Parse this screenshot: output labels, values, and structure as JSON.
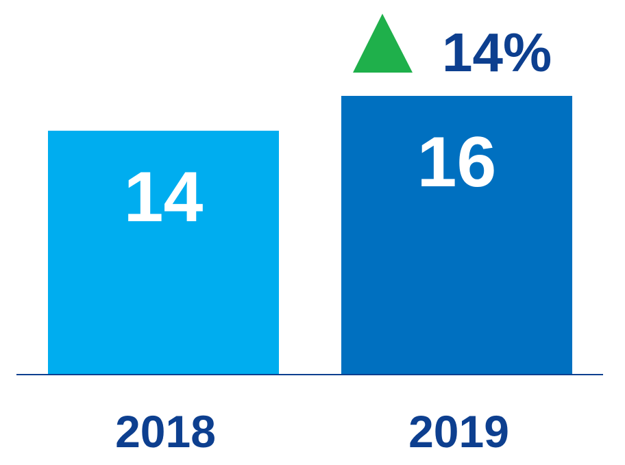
{
  "chart_data": {
    "type": "bar",
    "categories": [
      "2018",
      "2019"
    ],
    "values": [
      14,
      16
    ],
    "ylim": [
      0,
      16
    ],
    "grid": false,
    "annotations": [
      {
        "text": "14%",
        "direction": "up",
        "icon": "triangle-up-icon"
      }
    ]
  },
  "colors": {
    "bars": [
      "#00adef",
      "#0070c0"
    ],
    "axis": "#0d3f8f",
    "tick_label": "#0d3f8f",
    "value_label": "#ffffff",
    "change_label": "#0d3f8f",
    "up_arrow": "#1fb04b"
  }
}
